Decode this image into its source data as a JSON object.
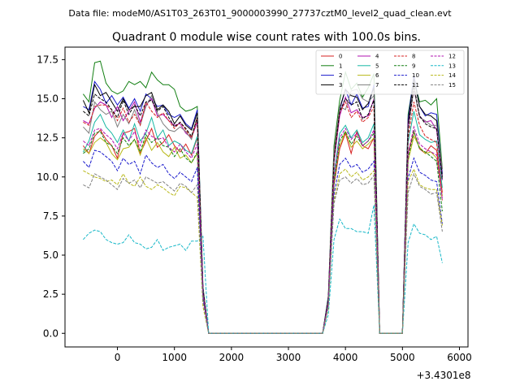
{
  "header": {
    "datafile": "Data file: modeM0/AS1T03_263T01_9000003990_27737cztM0_level2_quad_clean.evt"
  },
  "chart_data": {
    "type": "line",
    "title": "Quadrant 0 module wise count rates with 100.0s bins.",
    "xlabel": "",
    "ylabel": "",
    "x_offset_label": "+3.4301e8",
    "xlim": [
      -920,
      6150
    ],
    "ylim": [
      -0.87,
      18.3
    ],
    "xticks": [
      0,
      1000,
      2000,
      3000,
      4000,
      5000,
      6000
    ],
    "yticks": [
      "0.0",
      "2.5",
      "5.0",
      "7.5",
      "10.0",
      "12.5",
      "15.0",
      "17.5"
    ],
    "grid": false,
    "legend_position": "top-right",
    "legend_columns": 4,
    "x": [
      -600,
      -500,
      -400,
      -300,
      -200,
      -100,
      0,
      100,
      200,
      300,
      400,
      500,
      600,
      700,
      800,
      900,
      1000,
      1100,
      1200,
      1300,
      1400,
      1500,
      1600,
      1700,
      1800,
      1900,
      2000,
      2100,
      2200,
      2300,
      2400,
      2500,
      2600,
      2700,
      2800,
      2900,
      3000,
      3100,
      3200,
      3300,
      3400,
      3500,
      3600,
      3700,
      3800,
      3900,
      4000,
      4100,
      4200,
      4300,
      4400,
      4500,
      4600,
      4700,
      4800,
      4900,
      5000,
      5100,
      5200,
      5300,
      5400,
      5500,
      5600,
      5700
    ],
    "series": [
      {
        "name": "0",
        "color": "#d62020",
        "dash": "solid",
        "values": [
          12.0,
          11.5,
          12.6,
          13.0,
          12.4,
          12.0,
          11.2,
          12.8,
          12.9,
          13.1,
          11.5,
          12.3,
          13.1,
          11.9,
          12.2,
          12.7,
          12.0,
          11.6,
          12.1,
          11.4,
          12.5,
          2.5,
          0,
          0,
          0,
          0,
          0,
          0,
          0,
          0,
          0,
          0,
          0,
          0,
          0,
          0,
          0,
          0,
          0,
          0,
          0,
          0,
          0,
          2.0,
          9.5,
          11.8,
          12.8,
          11.5,
          12.9,
          12.0,
          11.8,
          12.5,
          0,
          0,
          0,
          0,
          0,
          11.5,
          12.9,
          11.8,
          11.5,
          12.0,
          11.7,
          9.0
        ]
      },
      {
        "name": "1",
        "color": "#127f12",
        "dash": "solid",
        "values": [
          15.3,
          14.8,
          17.3,
          17.4,
          16.0,
          15.5,
          15.3,
          15.5,
          16.1,
          15.9,
          16.1,
          15.7,
          16.7,
          16.2,
          15.9,
          15.9,
          15.6,
          14.5,
          14.2,
          14.3,
          14.5,
          3.0,
          0,
          0,
          0,
          0,
          0,
          0,
          0,
          0,
          0,
          0,
          0,
          0,
          0,
          0,
          0,
          0,
          0,
          0,
          0,
          0,
          0,
          2.4,
          12.0,
          14.9,
          16.7,
          15.6,
          16.0,
          15.1,
          15.7,
          16.6,
          0,
          0,
          0,
          0,
          0,
          14.0,
          16.3,
          14.8,
          14.9,
          14.6,
          15.0,
          10.5
        ]
      },
      {
        "name": "2",
        "color": "#1a1acc",
        "dash": "solid",
        "values": [
          14.5,
          14.3,
          16.1,
          15.6,
          14.7,
          15.2,
          14.6,
          15.1,
          14.4,
          15.0,
          14.2,
          15.3,
          15.0,
          14.5,
          14.6,
          14.0,
          13.8,
          14.0,
          13.4,
          13.1,
          14.3,
          2.9,
          0,
          0,
          0,
          0,
          0,
          0,
          0,
          0,
          0,
          0,
          0,
          0,
          0,
          0,
          0,
          0,
          0,
          0,
          0,
          0,
          0,
          2.3,
          11.5,
          14.3,
          15.6,
          14.6,
          15.3,
          14.4,
          14.5,
          15.9,
          0,
          0,
          0,
          0,
          0,
          13.7,
          16.5,
          14.5,
          13.9,
          14.1,
          14.0,
          10.2
        ]
      },
      {
        "name": "3",
        "color": "#000000",
        "dash": "solid",
        "values": [
          14.9,
          14.1,
          15.9,
          15.2,
          15.4,
          14.8,
          14.2,
          15.0,
          14.3,
          14.5,
          14.5,
          15.2,
          15.4,
          14.3,
          14.6,
          14.2,
          13.4,
          13.9,
          13.3,
          13.0,
          14.1,
          2.8,
          0,
          0,
          0,
          0,
          0,
          0,
          0,
          0,
          0,
          0,
          0,
          0,
          0,
          0,
          0,
          0,
          0,
          0,
          0,
          0,
          0,
          2.2,
          11.3,
          14.4,
          15.6,
          15.2,
          15.1,
          14.3,
          14.7,
          15.7,
          0,
          0,
          0,
          0,
          0,
          13.5,
          16.3,
          14.5,
          14.0,
          13.9,
          13.6,
          10.0
        ]
      },
      {
        "name": "4",
        "color": "#b010b0",
        "dash": "solid",
        "values": [
          13.6,
          13.4,
          14.4,
          14.8,
          14.6,
          13.8,
          14.5,
          13.6,
          14.2,
          14.8,
          13.5,
          14.6,
          15.0,
          13.9,
          14.0,
          13.6,
          13.3,
          13.4,
          12.8,
          12.5,
          13.5,
          2.7,
          0,
          0,
          0,
          0,
          0,
          0,
          0,
          0,
          0,
          0,
          0,
          0,
          0,
          0,
          0,
          0,
          0,
          0,
          0,
          0,
          0,
          2.1,
          11.0,
          13.9,
          15.1,
          14.1,
          14.3,
          13.8,
          13.9,
          15.0,
          0,
          0,
          0,
          0,
          0,
          13.3,
          15.6,
          13.9,
          13.5,
          13.6,
          13.0,
          9.8
        ]
      },
      {
        "name": "5",
        "color": "#18b8a4",
        "dash": "solid",
        "values": [
          11.6,
          12.3,
          13.5,
          14.0,
          13.2,
          12.8,
          12.2,
          13.0,
          12.3,
          13.4,
          12.3,
          12.8,
          13.8,
          12.5,
          13.0,
          12.0,
          12.3,
          12.1,
          11.7,
          11.5,
          12.6,
          2.6,
          0,
          0,
          0,
          0,
          0,
          0,
          0,
          0,
          0,
          0,
          0,
          0,
          0,
          0,
          0,
          0,
          0,
          0,
          0,
          0,
          0,
          2.0,
          10.2,
          12.8,
          13.3,
          12.5,
          13.0,
          12.2,
          12.5,
          13.4,
          0,
          0,
          0,
          0,
          0,
          12.2,
          14.2,
          12.7,
          12.4,
          12.2,
          12.3,
          9.3
        ]
      },
      {
        "name": "6",
        "color": "#b8b818",
        "dash": "solid",
        "values": [
          11.8,
          11.5,
          12.2,
          12.5,
          12.2,
          11.5,
          11.1,
          11.8,
          11.9,
          12.4,
          11.4,
          12.5,
          11.7,
          12.2,
          11.6,
          11.3,
          11.9,
          11.2,
          11.4,
          10.9,
          11.5,
          2.4,
          0,
          0,
          0,
          0,
          0,
          0,
          0,
          0,
          0,
          0,
          0,
          0,
          0,
          0,
          0,
          0,
          0,
          0,
          0,
          0,
          0,
          1.9,
          9.8,
          12.0,
          12.9,
          11.9,
          12.3,
          11.8,
          12.1,
          12.5,
          0,
          0,
          0,
          0,
          0,
          11.0,
          12.6,
          11.9,
          11.5,
          11.6,
          11.2,
          8.8
        ]
      },
      {
        "name": "7",
        "color": "#808080",
        "dash": "solid",
        "values": [
          13.2,
          12.8,
          14.8,
          14.3,
          14.0,
          14.2,
          13.2,
          14.0,
          13.4,
          14.3,
          13.3,
          14.5,
          15.2,
          14.1,
          13.4,
          13.0,
          12.9,
          13.2,
          12.9,
          12.4,
          13.9,
          2.8,
          0,
          0,
          0,
          0,
          0,
          0,
          0,
          0,
          0,
          0,
          0,
          0,
          0,
          0,
          0,
          0,
          0,
          0,
          0,
          0,
          0,
          2.2,
          11.6,
          14.5,
          14.3,
          15.5,
          15.6,
          15.0,
          14.8,
          15.2,
          0,
          0,
          0,
          0,
          0,
          13.0,
          15.7,
          13.8,
          13.6,
          13.3,
          13.3,
          10.5
        ]
      },
      {
        "name": "8",
        "color": "#d62020",
        "dash": "dash",
        "values": [
          13.5,
          13.3,
          14.5,
          14.6,
          14.6,
          14.3,
          13.6,
          14.4,
          13.5,
          14.0,
          13.3,
          14.8,
          14.2,
          13.8,
          14.1,
          13.6,
          13.1,
          13.5,
          13.0,
          12.5,
          13.7,
          2.7,
          0,
          0,
          0,
          0,
          0,
          0,
          0,
          0,
          0,
          0,
          0,
          0,
          0,
          0,
          0,
          0,
          0,
          0,
          0,
          0,
          0,
          2.1,
          11.2,
          14.1,
          14.8,
          13.8,
          14.2,
          13.5,
          13.8,
          14.5,
          0,
          0,
          0,
          0,
          0,
          12.5,
          14.8,
          13.3,
          12.6,
          12.4,
          12.2,
          8.5
        ]
      },
      {
        "name": "9",
        "color": "#127f12",
        "dash": "dash",
        "values": [
          11.5,
          11.8,
          12.8,
          12.9,
          12.2,
          12.0,
          11.5,
          12.5,
          12.0,
          12.4,
          11.6,
          12.7,
          12.2,
          12.5,
          12.0,
          11.9,
          11.3,
          11.8,
          11.2,
          10.9,
          11.6,
          2.4,
          0,
          0,
          0,
          0,
          0,
          0,
          0,
          0,
          0,
          0,
          0,
          0,
          0,
          0,
          0,
          0,
          0,
          0,
          0,
          0,
          0,
          1.9,
          9.6,
          12.3,
          12.9,
          12.1,
          12.6,
          12.0,
          12.3,
          12.8,
          0,
          0,
          0,
          0,
          0,
          11.2,
          12.9,
          11.8,
          11.6,
          11.3,
          11.0,
          7.8
        ]
      },
      {
        "name": "10",
        "color": "#1a1acc",
        "dash": "dash",
        "values": [
          11.0,
          10.6,
          11.7,
          11.6,
          11.3,
          11.0,
          10.4,
          11.2,
          10.8,
          11.0,
          10.2,
          11.4,
          10.9,
          10.6,
          10.8,
          10.2,
          9.9,
          10.3,
          10.0,
          9.7,
          10.6,
          2.2,
          0,
          0,
          0,
          0,
          0,
          0,
          0,
          0,
          0,
          0,
          0,
          0,
          0,
          0,
          0,
          0,
          0,
          0,
          0,
          0,
          0,
          1.8,
          8.9,
          10.8,
          11.2,
          10.6,
          10.8,
          10.3,
          10.5,
          11.0,
          0,
          0,
          0,
          0,
          0,
          9.9,
          11.2,
          10.3,
          10.1,
          9.8,
          9.7,
          7.0
        ]
      },
      {
        "name": "11",
        "color": "#000000",
        "dash": "dash",
        "values": [
          14.2,
          13.9,
          15.3,
          15.0,
          14.8,
          14.3,
          13.8,
          14.9,
          14.0,
          14.6,
          13.9,
          14.8,
          14.9,
          14.2,
          14.5,
          13.8,
          13.2,
          13.5,
          13.1,
          12.6,
          13.8,
          2.8,
          0,
          0,
          0,
          0,
          0,
          0,
          0,
          0,
          0,
          0,
          0,
          0,
          0,
          0,
          0,
          0,
          0,
          0,
          0,
          0,
          0,
          2.2,
          11.1,
          14.2,
          15.0,
          14.6,
          14.8,
          13.7,
          14.0,
          14.9,
          0,
          0,
          0,
          0,
          0,
          13.0,
          15.8,
          13.9,
          13.4,
          13.2,
          13.1,
          9.8
        ]
      },
      {
        "name": "12",
        "color": "#b010b0",
        "dash": "dash",
        "values": [
          12.3,
          12.0,
          13.0,
          13.1,
          12.7,
          12.4,
          11.8,
          12.8,
          12.3,
          12.9,
          12.0,
          13.0,
          12.6,
          12.4,
          12.5,
          11.9,
          11.6,
          12.1,
          11.6,
          11.2,
          12.1,
          2.5,
          0,
          0,
          0,
          0,
          0,
          0,
          0,
          0,
          0,
          0,
          0,
          0,
          0,
          0,
          0,
          0,
          0,
          0,
          0,
          0,
          0,
          2.0,
          10.1,
          12.5,
          13.1,
          12.4,
          12.8,
          12.0,
          12.3,
          13.0,
          0,
          0,
          0,
          0,
          0,
          11.5,
          13.2,
          12.1,
          11.8,
          11.6,
          11.4,
          8.6
        ]
      },
      {
        "name": "13",
        "color": "#18b8c8",
        "dash": "dash",
        "values": [
          6.0,
          6.4,
          6.6,
          6.5,
          6.0,
          5.8,
          5.7,
          5.8,
          6.3,
          5.8,
          5.7,
          5.4,
          5.5,
          6.0,
          5.3,
          5.5,
          5.6,
          5.7,
          5.3,
          5.9,
          5.9,
          6.2,
          0,
          0,
          0,
          0,
          0,
          0,
          0,
          0,
          0,
          0,
          0,
          0,
          0,
          0,
          0,
          0,
          0,
          0,
          0,
          0,
          0,
          1.2,
          6.0,
          7.3,
          6.7,
          6.7,
          6.5,
          6.5,
          6.4,
          8.2,
          0,
          0,
          0,
          0,
          0,
          5.8,
          7.0,
          6.4,
          6.3,
          6.0,
          6.2,
          4.5
        ]
      },
      {
        "name": "14",
        "color": "#b8b818",
        "dash": "dash",
        "values": [
          10.4,
          10.2,
          10.0,
          9.9,
          9.7,
          9.8,
          9.5,
          10.2,
          9.6,
          9.4,
          10.0,
          9.4,
          9.2,
          9.5,
          9.3,
          9.0,
          8.8,
          9.4,
          9.3,
          9.0,
          8.7,
          1.7,
          0,
          0,
          0,
          0,
          0,
          0,
          0,
          0,
          0,
          0,
          0,
          0,
          0,
          0,
          0,
          0,
          0,
          0,
          0,
          0,
          0,
          1.6,
          8.5,
          10.2,
          10.5,
          10.0,
          10.3,
          9.8,
          10.0,
          10.4,
          0,
          0,
          0,
          0,
          0,
          9.7,
          10.5,
          9.5,
          9.3,
          9.2,
          9.2,
          6.9
        ]
      },
      {
        "name": "15",
        "color": "#808080",
        "dash": "dash",
        "values": [
          9.5,
          9.3,
          10.2,
          10.0,
          9.8,
          9.5,
          9.2,
          9.9,
          9.6,
          9.8,
          9.3,
          10.0,
          9.8,
          9.6,
          9.7,
          9.4,
          9.1,
          9.6,
          9.4,
          9.0,
          9.5,
          2.0,
          0,
          0,
          0,
          0,
          0,
          0,
          0,
          0,
          0,
          0,
          0,
          0,
          0,
          0,
          0,
          0,
          0,
          0,
          0,
          0,
          0,
          1.7,
          8.3,
          9.8,
          10.0,
          9.6,
          9.9,
          9.5,
          9.6,
          10.1,
          0,
          0,
          0,
          0,
          0,
          9.0,
          10.2,
          9.4,
          9.2,
          8.9,
          9.0,
          6.5
        ]
      }
    ]
  }
}
